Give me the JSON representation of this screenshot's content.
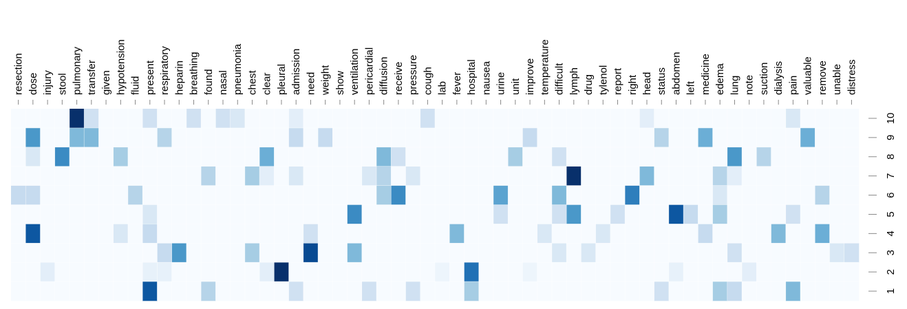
{
  "chart_data": {
    "type": "heatmap",
    "x_categories": [
      "resection",
      "dose",
      "injury",
      "stool",
      "pulmonary",
      "transfer",
      "given",
      "hypotension",
      "fluid",
      "present",
      "respiratory",
      "heparin",
      "breathing",
      "found",
      "nasal",
      "pneumonia",
      "chest",
      "clear",
      "pleural",
      "admission",
      "need",
      "weight",
      "show",
      "ventilation",
      "pericardial",
      "diffusion",
      "receive",
      "pressure",
      "cough",
      "lab",
      "fever",
      "hospital",
      "nausea",
      "urine",
      "unit",
      "improve",
      "temperature",
      "difficult",
      "lymph",
      "drug",
      "tylenol",
      "report",
      "right",
      "head",
      "status",
      "abdomen",
      "left",
      "medicine",
      "edema",
      "lung",
      "note",
      "suction",
      "dialysis",
      "pain",
      "valuable",
      "remove",
      "unable",
      "distress"
    ],
    "y_categories": [
      "10",
      "9",
      "8",
      "7",
      "6",
      "5",
      "4",
      "3",
      "2",
      "1"
    ],
    "grid": false,
    "legend": false,
    "colormap": "Blues",
    "value_range": [
      0,
      1
    ],
    "values": [
      [
        0,
        0,
        0,
        0,
        1.0,
        0.2,
        0,
        0,
        0,
        0.2,
        0,
        0,
        0.2,
        0,
        0.2,
        0.15,
        0,
        0,
        0,
        0.1,
        0,
        0,
        0,
        0,
        0,
        0,
        0,
        0,
        0.2,
        0,
        0,
        0,
        0,
        0,
        0,
        0,
        0,
        0,
        0,
        0,
        0,
        0,
        0,
        0.1,
        0,
        0,
        0,
        0,
        0,
        0,
        0,
        0,
        0,
        0.15,
        0,
        0,
        0,
        0
      ],
      [
        0,
        0.6,
        0,
        0,
        0.45,
        0.45,
        0,
        0,
        0,
        0,
        0.3,
        0,
        0,
        0,
        0,
        0,
        0,
        0,
        0,
        0.25,
        0,
        0.25,
        0,
        0,
        0,
        0,
        0,
        0,
        0,
        0,
        0,
        0,
        0,
        0,
        0,
        0.25,
        0,
        0,
        0,
        0,
        0,
        0,
        0,
        0,
        0.3,
        0,
        0,
        0.5,
        0,
        0,
        0,
        0,
        0,
        0,
        0.5,
        0,
        0,
        0
      ],
      [
        0,
        0.15,
        0,
        0.65,
        0,
        0,
        0,
        0.35,
        0,
        0,
        0,
        0,
        0,
        0,
        0,
        0,
        0,
        0.5,
        0,
        0,
        0,
        0,
        0,
        0,
        0,
        0.45,
        0.2,
        0,
        0,
        0,
        0,
        0,
        0,
        0,
        0.35,
        0,
        0,
        0.2,
        0,
        0,
        0,
        0,
        0,
        0,
        0,
        0,
        0,
        0,
        0,
        0.6,
        0,
        0.3,
        0,
        0,
        0,
        0,
        0,
        0
      ],
      [
        0,
        0,
        0,
        0,
        0,
        0,
        0,
        0,
        0,
        0,
        0,
        0,
        0,
        0.3,
        0,
        0,
        0.35,
        0.1,
        0,
        0.15,
        0,
        0,
        0,
        0,
        0.15,
        0.3,
        0,
        0.15,
        0,
        0,
        0,
        0,
        0,
        0,
        0,
        0,
        0,
        0,
        1.0,
        0,
        0,
        0,
        0,
        0.45,
        0,
        0,
        0,
        0,
        0.3,
        0.1,
        0,
        0,
        0,
        0,
        0,
        0,
        0,
        0
      ],
      [
        0.25,
        0.25,
        0,
        0,
        0,
        0,
        0,
        0,
        0.3,
        0,
        0,
        0,
        0,
        0,
        0,
        0,
        0,
        0,
        0,
        0,
        0,
        0,
        0,
        0,
        0,
        0.35,
        0.65,
        0,
        0,
        0,
        0,
        0,
        0,
        0.55,
        0,
        0,
        0,
        0.45,
        0,
        0,
        0,
        0,
        0.7,
        0,
        0,
        0,
        0,
        0,
        0.15,
        0,
        0,
        0,
        0,
        0,
        0,
        0.3,
        0,
        0
      ],
      [
        0,
        0,
        0,
        0,
        0,
        0,
        0,
        0,
        0,
        0.15,
        0,
        0,
        0,
        0,
        0,
        0,
        0,
        0,
        0,
        0,
        0,
        0,
        0,
        0.65,
        0,
        0,
        0,
        0,
        0,
        0,
        0,
        0,
        0,
        0.2,
        0,
        0,
        0,
        0.2,
        0.6,
        0,
        0,
        0.2,
        0,
        0,
        0,
        0.85,
        0.25,
        0,
        0.35,
        0,
        0,
        0,
        0,
        0.2,
        0,
        0,
        0,
        0
      ],
      [
        0,
        0.85,
        0,
        0,
        0,
        0,
        0,
        0.15,
        0,
        0.25,
        0,
        0,
        0,
        0,
        0,
        0,
        0,
        0,
        0,
        0,
        0.2,
        0,
        0,
        0,
        0,
        0,
        0,
        0,
        0,
        0,
        0.45,
        0,
        0,
        0,
        0,
        0,
        0.15,
        0,
        0,
        0,
        0.15,
        0,
        0,
        0,
        0,
        0,
        0,
        0.25,
        0,
        0,
        0,
        0,
        0.45,
        0,
        0,
        0.5,
        0,
        0
      ],
      [
        0,
        0,
        0,
        0,
        0,
        0,
        0,
        0,
        0,
        0,
        0.25,
        0.6,
        0,
        0,
        0,
        0,
        0.35,
        0,
        0,
        0,
        0.9,
        0,
        0,
        0.45,
        0,
        0,
        0,
        0,
        0,
        0,
        0,
        0,
        0,
        0,
        0,
        0,
        0,
        0.15,
        0,
        0.15,
        0,
        0,
        0,
        0,
        0,
        0,
        0,
        0,
        0,
        0.2,
        0,
        0,
        0,
        0,
        0,
        0,
        0.15,
        0.2
      ],
      [
        0,
        0,
        0.1,
        0,
        0,
        0,
        0,
        0,
        0,
        0.08,
        0.08,
        0,
        0,
        0,
        0,
        0,
        0,
        0.1,
        1.0,
        0,
        0,
        0,
        0,
        0,
        0,
        0,
        0,
        0,
        0,
        0.05,
        0,
        0.75,
        0,
        0,
        0,
        0.05,
        0,
        0,
        0,
        0,
        0,
        0,
        0,
        0,
        0,
        0.08,
        0,
        0,
        0,
        0,
        0.1,
        0,
        0,
        0,
        0,
        0,
        0,
        0
      ],
      [
        0,
        0,
        0,
        0,
        0,
        0,
        0,
        0,
        0,
        0.85,
        0,
        0,
        0,
        0.3,
        0,
        0,
        0,
        0,
        0,
        0.2,
        0,
        0,
        0,
        0,
        0.2,
        0,
        0,
        0.2,
        0,
        0,
        0,
        0.35,
        0,
        0,
        0,
        0,
        0,
        0,
        0,
        0,
        0,
        0,
        0,
        0,
        0.2,
        0,
        0,
        0,
        0.35,
        0.25,
        0,
        0,
        0,
        0.45,
        0,
        0,
        0,
        0
      ]
    ]
  }
}
